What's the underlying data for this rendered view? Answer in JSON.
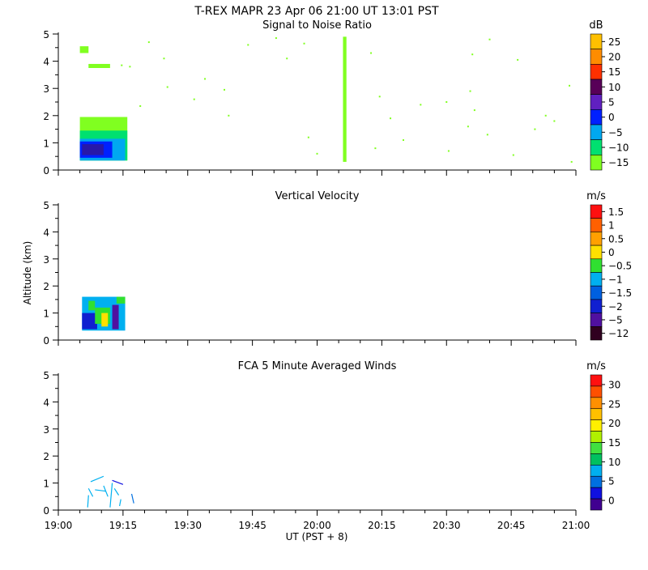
{
  "header": {
    "title": "T-REX  MAPR 23 Apr 06  21:00 UT  13:01  PST"
  },
  "x_axis": {
    "label": "UT  (PST + 8)",
    "range": [
      0,
      120
    ],
    "ticks": [
      {
        "v": 0,
        "label": "19:00"
      },
      {
        "v": 15,
        "label": "19:15"
      },
      {
        "v": 30,
        "label": "19:30"
      },
      {
        "v": 45,
        "label": "19:45"
      },
      {
        "v": 60,
        "label": "20:00"
      },
      {
        "v": 75,
        "label": "20:15"
      },
      {
        "v": 90,
        "label": "20:30"
      },
      {
        "v": 105,
        "label": "20:45"
      },
      {
        "v": 120,
        "label": "21:00"
      }
    ]
  },
  "y_axis": {
    "label": "Altitude (km)",
    "range": [
      0,
      5
    ],
    "ticks": [
      "0",
      "1",
      "2",
      "3",
      "4",
      "5"
    ]
  },
  "chart_data": [
    {
      "type": "heatmap",
      "title": "Signal to Noise Ratio",
      "units": "dB",
      "ylim": [
        0,
        5
      ],
      "colorbar": {
        "labels": [
          "25",
          "20",
          "15",
          "10",
          "5",
          "0",
          "−5",
          "−10",
          "−15"
        ],
        "colors": [
          "#ffc000",
          "#ff8c00",
          "#ff3000",
          "#580058",
          "#6020c0",
          "#0020ff",
          "#00a8f0",
          "#00e070",
          "#80ff20"
        ]
      },
      "regions": [
        {
          "t0": 5.0,
          "t1": 16.0,
          "z0": 0.35,
          "z1": 1.95,
          "color": "#80ff20"
        },
        {
          "t0": 5.0,
          "t1": 16.0,
          "z0": 0.35,
          "z1": 1.45,
          "color": "#00e070"
        },
        {
          "t0": 5.0,
          "t1": 15.5,
          "z0": 0.35,
          "z1": 1.15,
          "color": "#00a8f0"
        },
        {
          "t0": 5.0,
          "t1": 12.5,
          "z0": 0.45,
          "z1": 1.05,
          "color": "#0020ff"
        },
        {
          "t0": 5.5,
          "t1": 10.5,
          "z0": 0.55,
          "z1": 0.95,
          "color": "#2818a8"
        },
        {
          "t0": 5.0,
          "t1": 7.0,
          "z0": 4.3,
          "z1": 4.55,
          "color": "#80ff20"
        },
        {
          "t0": 7.0,
          "t1": 12.0,
          "z0": 3.75,
          "z1": 3.9,
          "color": "#80ff20"
        },
        {
          "t0": 66.0,
          "t1": 66.8,
          "z0": 0.3,
          "z1": 4.9,
          "color": "#80ff20"
        }
      ],
      "speckles": [
        {
          "t": 14.7,
          "z": 3.85
        },
        {
          "t": 16.6,
          "z": 3.8
        },
        {
          "t": 19.0,
          "z": 2.35
        },
        {
          "t": 21.0,
          "z": 4.7
        },
        {
          "t": 24.5,
          "z": 4.1
        },
        {
          "t": 25.3,
          "z": 3.05
        },
        {
          "t": 31.5,
          "z": 2.6
        },
        {
          "t": 34.0,
          "z": 3.35
        },
        {
          "t": 38.5,
          "z": 2.95
        },
        {
          "t": 39.5,
          "z": 2.0
        },
        {
          "t": 44.0,
          "z": 4.6
        },
        {
          "t": 50.5,
          "z": 4.85
        },
        {
          "t": 53.0,
          "z": 4.1
        },
        {
          "t": 57.0,
          "z": 4.65
        },
        {
          "t": 58.0,
          "z": 1.2
        },
        {
          "t": 60.0,
          "z": 0.6
        },
        {
          "t": 72.5,
          "z": 4.3
        },
        {
          "t": 73.5,
          "z": 0.8
        },
        {
          "t": 74.5,
          "z": 2.7
        },
        {
          "t": 77.0,
          "z": 1.9
        },
        {
          "t": 80.0,
          "z": 1.1
        },
        {
          "t": 84.0,
          "z": 2.4
        },
        {
          "t": 90.0,
          "z": 2.5
        },
        {
          "t": 90.5,
          "z": 0.7
        },
        {
          "t": 95.0,
          "z": 1.6
        },
        {
          "t": 95.5,
          "z": 2.9
        },
        {
          "t": 96.0,
          "z": 4.25
        },
        {
          "t": 96.5,
          "z": 2.2
        },
        {
          "t": 99.5,
          "z": 1.3
        },
        {
          "t": 100.0,
          "z": 4.8
        },
        {
          "t": 105.5,
          "z": 0.55
        },
        {
          "t": 106.5,
          "z": 4.05
        },
        {
          "t": 110.5,
          "z": 1.5
        },
        {
          "t": 113.0,
          "z": 2.0
        },
        {
          "t": 115.0,
          "z": 1.8
        },
        {
          "t": 118.5,
          "z": 3.1
        },
        {
          "t": 119.0,
          "z": 0.3
        }
      ]
    },
    {
      "type": "heatmap",
      "title": "Vertical Velocity",
      "units": "m/s",
      "ylim": [
        0,
        5
      ],
      "colorbar": {
        "labels": [
          "1.5",
          "1",
          "0.5",
          "0",
          "−0.5",
          "−1",
          "−1.5",
          "−2",
          "−5",
          "−12"
        ],
        "colors": [
          "#ff1010",
          "#ff6000",
          "#ffa000",
          "#ffe000",
          "#30e030",
          "#00b0f0",
          "#0060e0",
          "#1020d0",
          "#5010a0",
          "#300020"
        ]
      },
      "regions": [
        {
          "t0": 5.5,
          "t1": 15.5,
          "z0": 0.35,
          "z1": 1.6,
          "color": "#00b0f0"
        },
        {
          "t0": 5.5,
          "t1": 9.0,
          "z0": 0.4,
          "z1": 1.0,
          "color": "#1020d0"
        },
        {
          "t0": 8.5,
          "t1": 12.0,
          "z0": 0.6,
          "z1": 1.2,
          "color": "#30e030"
        },
        {
          "t0": 10.0,
          "t1": 11.5,
          "z0": 0.5,
          "z1": 1.0,
          "color": "#ffe000"
        },
        {
          "t0": 12.5,
          "t1": 14.0,
          "z0": 0.4,
          "z1": 1.3,
          "color": "#5010a0"
        },
        {
          "t0": 7.0,
          "t1": 8.5,
          "z0": 1.1,
          "z1": 1.45,
          "color": "#30e030"
        },
        {
          "t0": 13.5,
          "t1": 15.5,
          "z0": 1.35,
          "z1": 1.6,
          "color": "#30e030"
        }
      ],
      "speckles": []
    },
    {
      "type": "barbs",
      "title": "FCA 5 Minute Averaged Winds",
      "units": "m/s",
      "ylim": [
        0,
        5
      ],
      "colorbar": {
        "labels": [
          "30",
          "25",
          "20",
          "15",
          "10",
          "5",
          "0"
        ],
        "colors": [
          "#ff1010",
          "#ff5000",
          "#ff9000",
          "#ffc000",
          "#fff000",
          "#b0f000",
          "#40e040",
          "#00c060",
          "#00b0f0",
          "#0070e0",
          "#1010e0",
          "#400090"
        ]
      },
      "segments": [
        {
          "t0": 7.5,
          "z0": 1.05,
          "t1": 10.5,
          "z1": 1.25,
          "color": "#00b0f0"
        },
        {
          "t0": 7.0,
          "z0": 0.8,
          "t1": 8.0,
          "z1": 0.5,
          "color": "#00b0f0"
        },
        {
          "t0": 8.5,
          "z0": 0.75,
          "t1": 11.0,
          "z1": 0.7,
          "color": "#00b0f0"
        },
        {
          "t0": 10.5,
          "z0": 0.9,
          "t1": 11.5,
          "z1": 0.5,
          "color": "#00b0f0"
        },
        {
          "t0": 7.0,
          "z0": 0.55,
          "t1": 6.8,
          "z1": 0.1,
          "color": "#00b0f0"
        },
        {
          "t0": 12.5,
          "z0": 1.0,
          "t1": 12.0,
          "z1": 0.1,
          "color": "#00b0f0"
        },
        {
          "t0": 12.5,
          "z0": 1.1,
          "t1": 15.0,
          "z1": 0.95,
          "color": "#1010e0"
        },
        {
          "t0": 13.0,
          "z0": 0.8,
          "t1": 14.0,
          "z1": 0.55,
          "color": "#00b0f0"
        },
        {
          "t0": 17.0,
          "z0": 0.6,
          "t1": 17.5,
          "z1": 0.25,
          "color": "#0070e0"
        },
        {
          "t0": 14.5,
          "z0": 0.4,
          "t1": 14.2,
          "z1": 0.15,
          "color": "#00b0f0"
        }
      ]
    }
  ]
}
